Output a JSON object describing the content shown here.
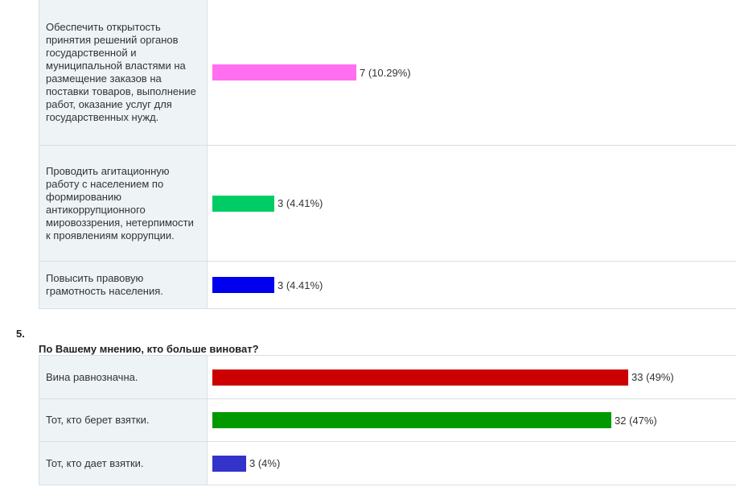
{
  "question4": {
    "options": [
      {
        "label": "Обеспечить открытость принятия решений органов государственной и муниципальной властями на размещение заказов на поставки товаров, выполнение работ, оказание услуг для государственных нужд.",
        "count": 7,
        "percent": 10.29,
        "result_text": "7 (10.29%)",
        "color": "#ff6ff0"
      },
      {
        "label": "Проводить агитационную работу с населением по формированию антикоррупционного мировоззрения, нетерпимости к проявлениям коррупции.",
        "count": 3,
        "percent": 4.41,
        "result_text": "3 (4.41%)",
        "color": "#00cc66"
      },
      {
        "label": "Повысить правовую грамотность населения.",
        "count": 3,
        "percent": 4.41,
        "result_text": "3 (4.41%)",
        "color": "#0000ee"
      }
    ]
  },
  "question5": {
    "number": "5.",
    "title": "По Вашему мнению, кто больше виноват?",
    "options": [
      {
        "label": "Вина равнозначна.",
        "count": 33,
        "percent": 49,
        "result_text": "33 (49%)",
        "color": "#cc0000"
      },
      {
        "label": "Тот, кто берет взятки.",
        "count": 32,
        "percent": 47,
        "result_text": "32 (47%)",
        "color": "#009900"
      },
      {
        "label": "Тот, кто дает взятки.",
        "count": 3,
        "percent": 4,
        "result_text": "3 (4%)",
        "color": "#3333cc"
      }
    ]
  }
}
